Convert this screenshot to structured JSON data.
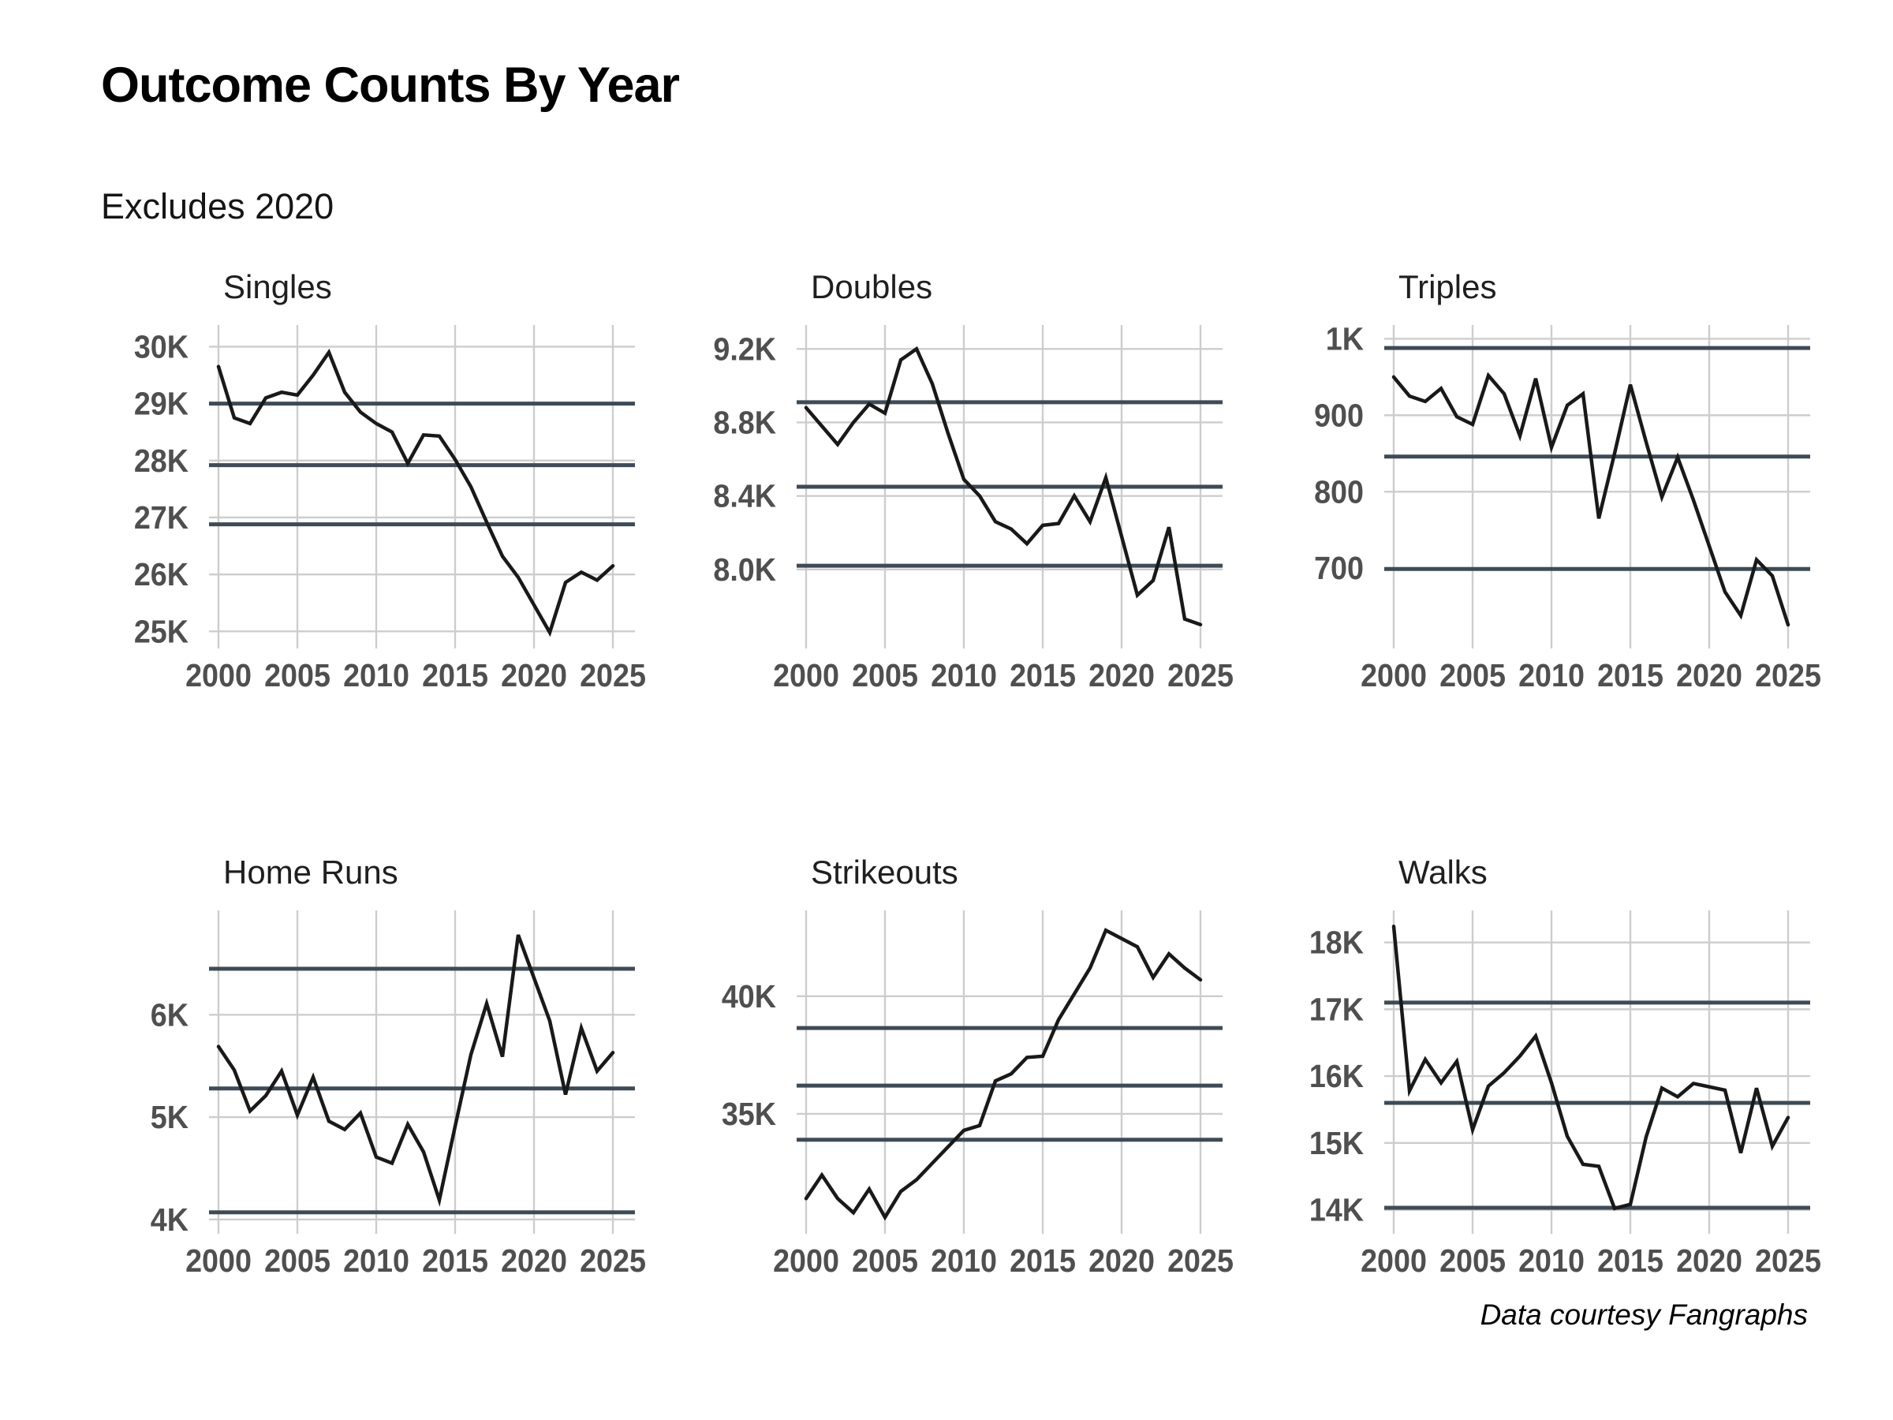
{
  "header": {
    "title": "Outcome Counts By Year",
    "subtitle": "Excludes 2020"
  },
  "footer": {
    "caption": "Data courtesy Fangraphs"
  },
  "colors": {
    "background": "#ffffff",
    "line": "#191919",
    "reference_line": "#3e4b57",
    "gridline": "#cdcdcd",
    "tick_label": "#4f4f4f",
    "panel_title": "#1f1f1f"
  },
  "excluded_year": 2020,
  "x_ticks": [
    2000,
    2005,
    2010,
    2015,
    2020,
    2025
  ],
  "xlim": [
    1999.4,
    2026.4
  ],
  "chart_data": [
    {
      "type": "line",
      "title": "Singles",
      "years": [
        2000,
        2001,
        2002,
        2003,
        2004,
        2005,
        2006,
        2007,
        2008,
        2009,
        2010,
        2011,
        2012,
        2013,
        2014,
        2015,
        2016,
        2017,
        2018,
        2019,
        2021,
        2022,
        2023,
        2024,
        2025
      ],
      "values": [
        29650,
        28750,
        28650,
        29100,
        29200,
        29150,
        29500,
        29900,
        29200,
        28850,
        28650,
        28500,
        27950,
        28450,
        28430,
        28020,
        27540,
        26920,
        26320,
        25950,
        24980,
        25860,
        26040,
        25900,
        26150
      ],
      "y_ticks": [
        {
          "v": 25000,
          "label": "25K"
        },
        {
          "v": 26000,
          "label": "26K"
        },
        {
          "v": 27000,
          "label": "27K"
        },
        {
          "v": 28000,
          "label": "28K"
        },
        {
          "v": 29000,
          "label": "29K"
        },
        {
          "v": 30000,
          "label": "30K"
        }
      ],
      "reference_lines": [
        29000,
        27920,
        26880
      ],
      "ylim": [
        24700,
        30380
      ]
    },
    {
      "type": "line",
      "title": "Doubles",
      "years": [
        2000,
        2001,
        2002,
        2003,
        2004,
        2005,
        2006,
        2007,
        2008,
        2009,
        2010,
        2011,
        2012,
        2013,
        2014,
        2015,
        2016,
        2017,
        2018,
        2019,
        2021,
        2022,
        2023,
        2024,
        2025
      ],
      "values": [
        8880,
        8780,
        8680,
        8800,
        8900,
        8850,
        9140,
        9200,
        9010,
        8740,
        8490,
        8400,
        8260,
        8220,
        8140,
        8240,
        8250,
        8400,
        8260,
        8500,
        7860,
        7940,
        8230,
        7730,
        7700
      ],
      "y_ticks": [
        {
          "v": 8000,
          "label": "8.0K"
        },
        {
          "v": 8400,
          "label": "8.4K"
        },
        {
          "v": 8800,
          "label": "8.8K"
        },
        {
          "v": 9200,
          "label": "9.2K"
        }
      ],
      "reference_lines": [
        8910,
        8450,
        8020
      ],
      "ylim": [
        7570,
        9330
      ]
    },
    {
      "type": "line",
      "title": "Triples",
      "years": [
        2000,
        2001,
        2002,
        2003,
        2004,
        2005,
        2006,
        2007,
        2008,
        2009,
        2010,
        2011,
        2012,
        2013,
        2014,
        2015,
        2016,
        2017,
        2018,
        2019,
        2021,
        2022,
        2023,
        2024,
        2025
      ],
      "values": [
        950,
        925,
        918,
        935,
        898,
        888,
        952,
        928,
        873,
        948,
        858,
        913,
        928,
        765,
        850,
        940,
        865,
        793,
        845,
        789,
        669,
        638,
        711,
        690,
        626
      ],
      "y_ticks": [
        {
          "v": 700,
          "label": "700"
        },
        {
          "v": 800,
          "label": "800"
        },
        {
          "v": 900,
          "label": "900"
        },
        {
          "v": 1000,
          "label": "1K"
        }
      ],
      "reference_lines": [
        988,
        846,
        699
      ],
      "ylim": [
        595,
        1018
      ]
    },
    {
      "type": "line",
      "title": "Home Runs",
      "years": [
        2000,
        2001,
        2002,
        2003,
        2004,
        2005,
        2006,
        2007,
        2008,
        2009,
        2010,
        2011,
        2012,
        2013,
        2014,
        2015,
        2016,
        2017,
        2018,
        2019,
        2021,
        2022,
        2023,
        2024,
        2025
      ],
      "values": [
        5690,
        5460,
        5060,
        5210,
        5450,
        5020,
        5390,
        4960,
        4880,
        5040,
        4610,
        4550,
        4930,
        4660,
        4190,
        4910,
        5610,
        6110,
        5590,
        6780,
        5940,
        5220,
        5870,
        5450,
        5630
      ],
      "y_ticks": [
        {
          "v": 4000,
          "label": "4K"
        },
        {
          "v": 5000,
          "label": "5K"
        },
        {
          "v": 6000,
          "label": "6K"
        }
      ],
      "reference_lines": [
        6450,
        5280,
        4070
      ],
      "ylim": [
        3860,
        7020
      ]
    },
    {
      "type": "line",
      "title": "Strikeouts",
      "years": [
        2000,
        2001,
        2002,
        2003,
        2004,
        2005,
        2006,
        2007,
        2008,
        2009,
        2010,
        2011,
        2012,
        2013,
        2014,
        2015,
        2016,
        2017,
        2018,
        2019,
        2021,
        2022,
        2023,
        2024,
        2025
      ],
      "values": [
        31400,
        32400,
        31400,
        30800,
        31800,
        30600,
        31700,
        32200,
        32900,
        33600,
        34300,
        34500,
        36400,
        36700,
        37400,
        37450,
        39000,
        40100,
        41200,
        42800,
        42100,
        40800,
        41800,
        41200,
        40700
      ],
      "y_ticks": [
        {
          "v": 35000,
          "label": "35K"
        },
        {
          "v": 40000,
          "label": "40K"
        }
      ],
      "reference_lines": [
        38650,
        36200,
        33900
      ],
      "ylim": [
        29900,
        43650
      ]
    },
    {
      "type": "line",
      "title": "Walks",
      "years": [
        2000,
        2001,
        2002,
        2003,
        2004,
        2005,
        2006,
        2007,
        2008,
        2009,
        2010,
        2011,
        2012,
        2013,
        2014,
        2015,
        2016,
        2017,
        2018,
        2019,
        2021,
        2022,
        2023,
        2024,
        2025
      ],
      "values": [
        18240,
        15780,
        16250,
        15900,
        16220,
        15200,
        15850,
        16050,
        16300,
        16600,
        15900,
        15100,
        14680,
        14650,
        14020,
        14080,
        15090,
        15820,
        15690,
        15890,
        15790,
        14850,
        15820,
        14950,
        15380
      ],
      "y_ticks": [
        {
          "v": 14000,
          "label": "14K"
        },
        {
          "v": 15000,
          "label": "15K"
        },
        {
          "v": 16000,
          "label": "16K"
        },
        {
          "v": 17000,
          "label": "17K"
        },
        {
          "v": 18000,
          "label": "18K"
        }
      ],
      "reference_lines": [
        17100,
        15600,
        14030
      ],
      "ylim": [
        13640,
        18480
      ]
    }
  ]
}
